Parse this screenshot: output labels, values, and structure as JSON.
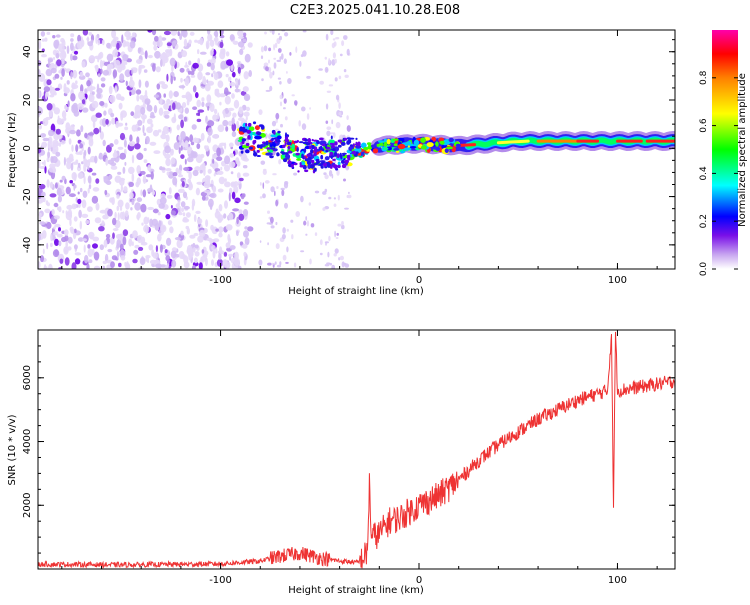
{
  "title": "C2E3.2025.041.10.28.E08",
  "chart_data": [
    {
      "type": "heatmap",
      "xlabel": "Height of straight line (km)",
      "ylabel": "Frequency (Hz)",
      "xlim": [
        -192,
        129
      ],
      "ylim": [
        -50,
        49
      ],
      "xticks": [
        -100,
        0,
        100
      ],
      "yticks": [
        -40,
        -20,
        0,
        20,
        40
      ],
      "colorbar": {
        "label": "Normalized spectral amplitude",
        "range": [
          0.0,
          1.0
        ],
        "ticks": [
          0.0,
          0.2,
          0.4,
          0.6,
          0.8
        ],
        "colormap": [
          "#ffffff",
          "#c8a6f0",
          "#6a00e8",
          "#0000ff",
          "#00ffff",
          "#00ff00",
          "#ffff00",
          "#ff8000",
          "#ff0000",
          "#ff00aa"
        ]
      },
      "ridge": {
        "description_values": [
          {
            "x": -85,
            "f": 5
          },
          {
            "x": -60,
            "f": -3
          },
          {
            "x": -35,
            "f": -2
          },
          {
            "x": -20,
            "f": 1
          },
          {
            "x": 0,
            "f": 2
          },
          {
            "x": 20,
            "f": 1
          },
          {
            "x": 50,
            "f": 3
          },
          {
            "x": 100,
            "f": 3
          },
          {
            "x": 129,
            "f": 3
          }
        ]
      }
    },
    {
      "type": "line",
      "xlabel": "Height of straight line (km)",
      "ylabel": "SNR (10 * v/v)",
      "xlim": [
        -192,
        129
      ],
      "ylim": [
        0,
        7500
      ],
      "xticks": [
        -100,
        0,
        100
      ],
      "yticks": [
        2000,
        4000,
        6000
      ],
      "color": "#ee3333",
      "series": [
        {
          "x": [
            -192,
            -150,
            -100,
            -80,
            -70,
            -60,
            -50,
            -40,
            -30,
            -26,
            -25,
            -24,
            -20,
            -15,
            -10,
            0,
            10,
            20,
            30,
            40,
            50,
            60,
            70,
            80,
            90,
            95,
            97,
            98,
            99,
            100,
            110,
            120,
            129
          ],
          "y": [
            150,
            130,
            160,
            250,
            400,
            500,
            350,
            250,
            200,
            500,
            2700,
            1000,
            1100,
            1500,
            1600,
            2000,
            2300,
            2800,
            3400,
            3900,
            4300,
            4700,
            5000,
            5300,
            5500,
            5600,
            7400,
            1900,
            7500,
            5600,
            5700,
            5800,
            5900
          ]
        }
      ]
    }
  ]
}
